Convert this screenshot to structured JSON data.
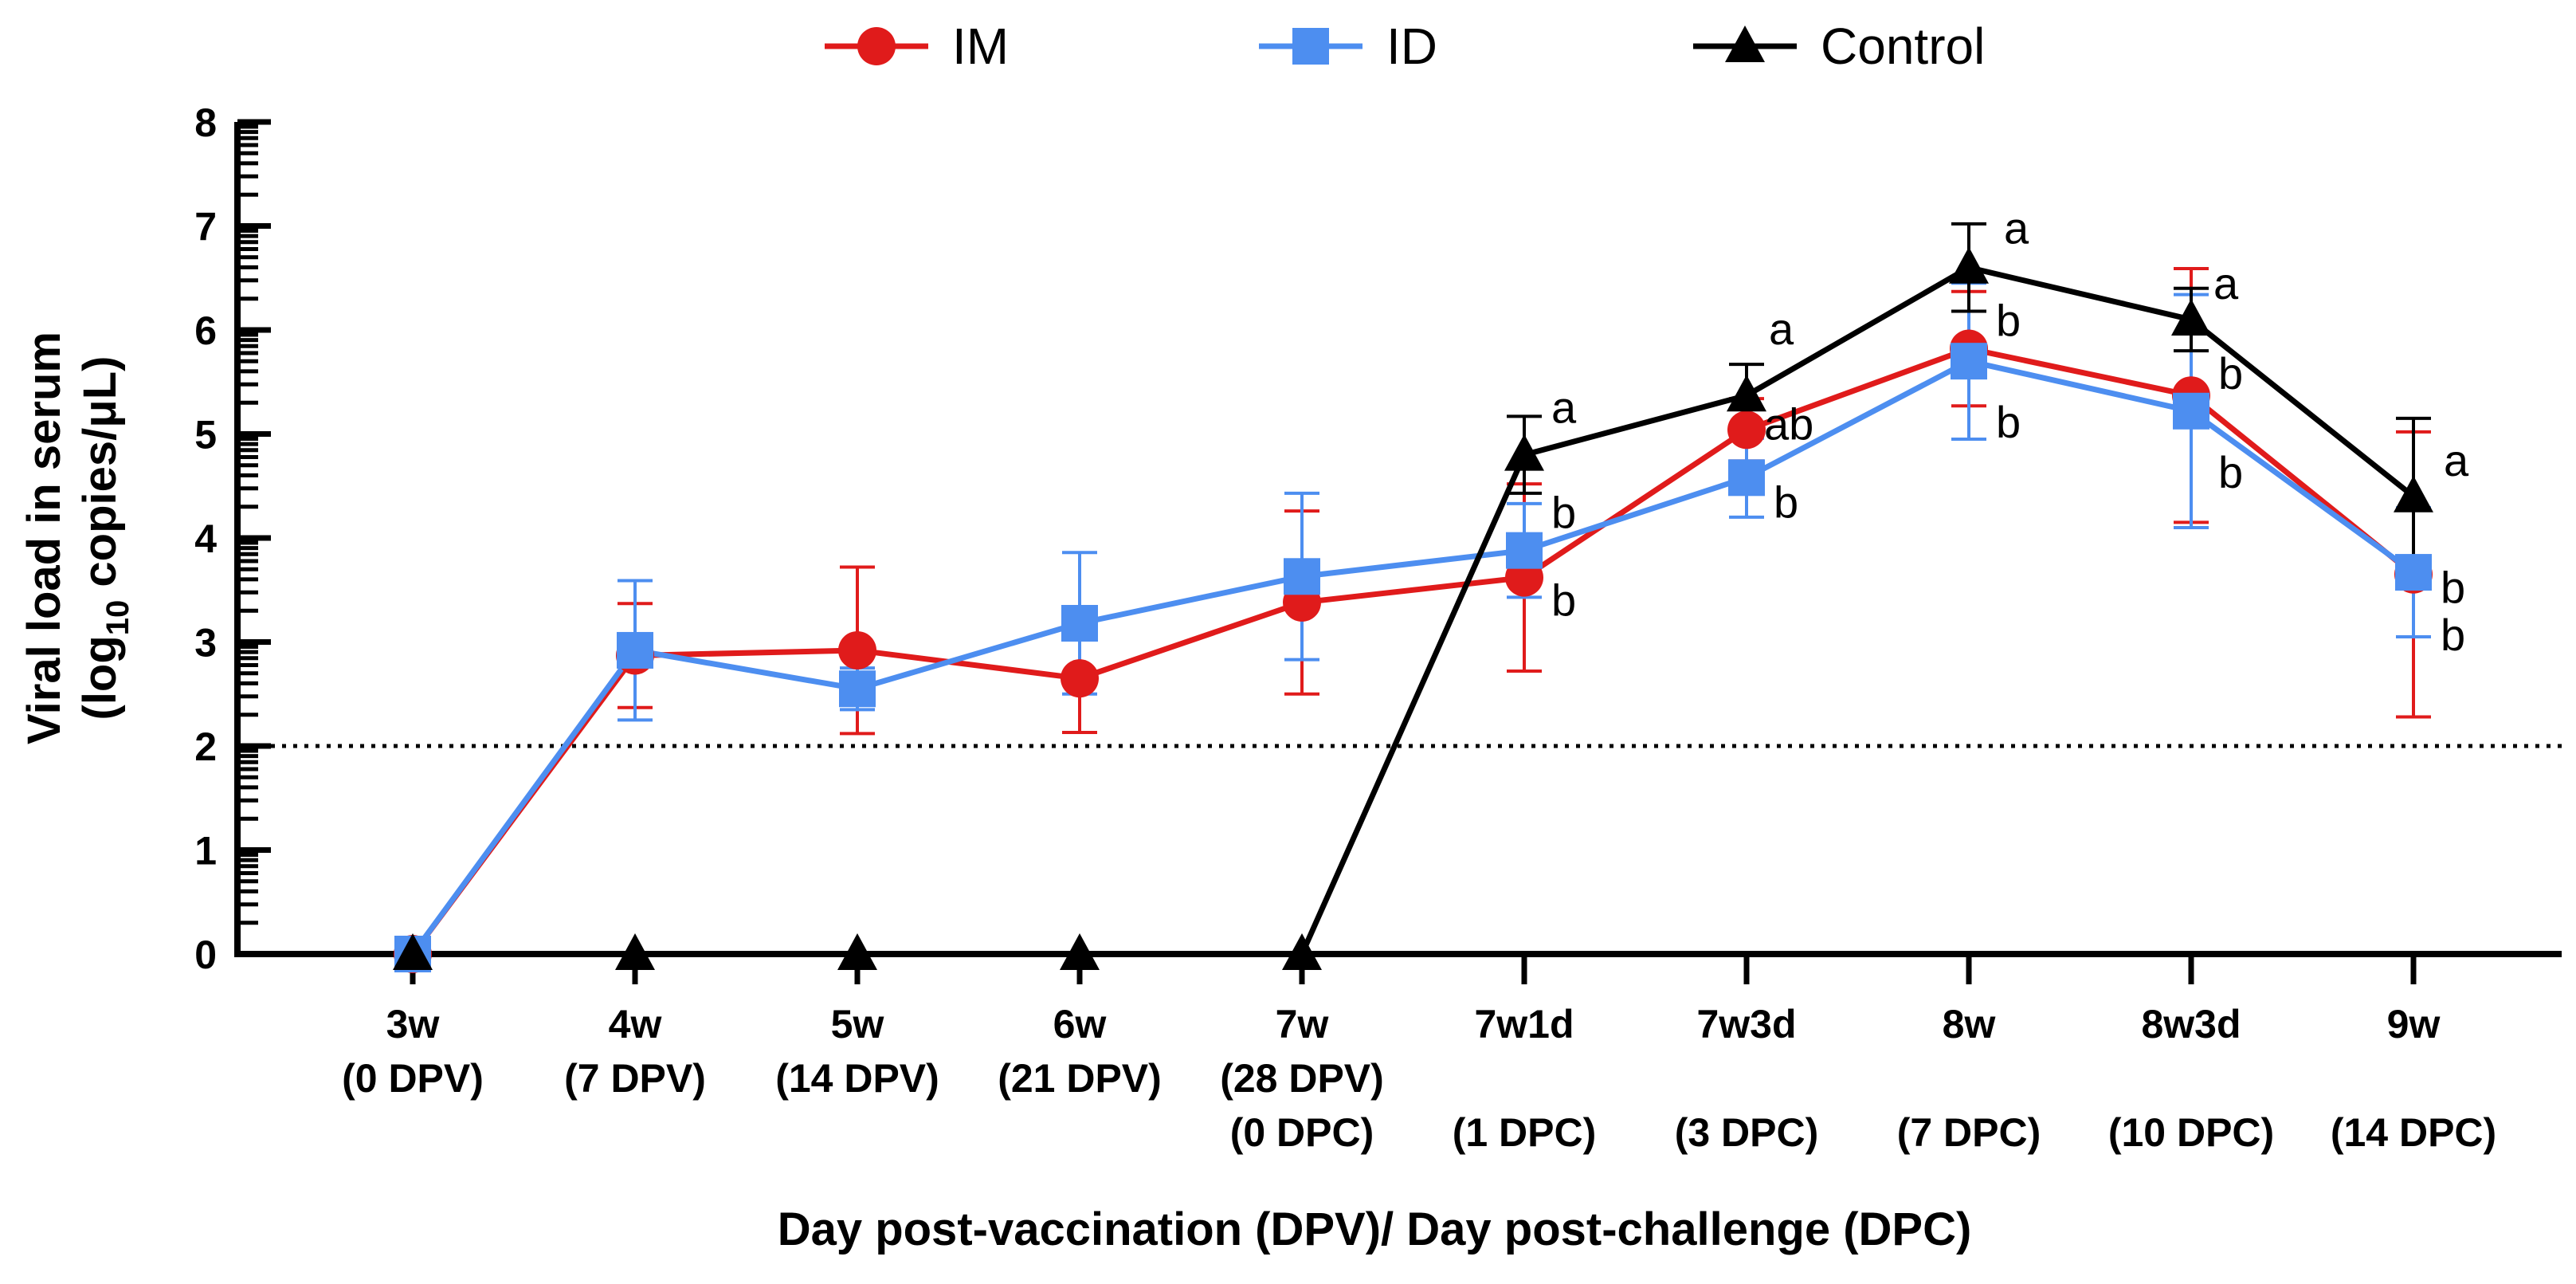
{
  "chart_data": {
    "type": "line",
    "xlabel": "Day post-vaccination (DPV)/ Day post-challenge (DPC)",
    "ylabel_line1": "Viral load in serum",
    "ylabel_line2_pre": "(log",
    "ylabel_line2_sub": "10",
    "ylabel_line2_post": " copies/μL)",
    "ylim": [
      0,
      8
    ],
    "yticks": [
      "0",
      "1",
      "2",
      "3",
      "4",
      "5",
      "6",
      "7",
      "8"
    ],
    "threshold": 2,
    "categories": [
      {
        "lines": [
          "3w",
          "(0 DPV)"
        ]
      },
      {
        "lines": [
          "4w",
          "(7 DPV)"
        ]
      },
      {
        "lines": [
          "5w",
          "(14 DPV)"
        ]
      },
      {
        "lines": [
          "6w",
          "(21 DPV)"
        ]
      },
      {
        "lines": [
          "7w",
          "(28 DPV)",
          "(0 DPC)"
        ]
      },
      {
        "lines": [
          "7w1d",
          "",
          "(1 DPC)"
        ]
      },
      {
        "lines": [
          "7w3d",
          "",
          "(3 DPC)"
        ]
      },
      {
        "lines": [
          "8w",
          "",
          "(7 DPC)"
        ]
      },
      {
        "lines": [
          "8w3d",
          "",
          "(10 DPC)"
        ]
      },
      {
        "lines": [
          "9w",
          "",
          "(14 DPC)"
        ]
      }
    ],
    "legend": {
      "position": "top-center"
    },
    "series": [
      {
        "name": "IM",
        "color": "#e01b1b",
        "marker": "circle",
        "start": 0,
        "values": [
          0,
          2.87,
          2.92,
          2.65,
          3.38,
          3.62,
          5.04,
          5.82,
          5.37,
          3.65
        ],
        "err_lo": [
          0,
          0.5,
          0.8,
          0.52,
          0.88,
          0.9,
          0.3,
          0.55,
          1.22,
          1.37
        ],
        "err_hi": [
          0,
          0.5,
          0.8,
          0.52,
          0.88,
          0.9,
          0.3,
          0.55,
          1.22,
          1.37
        ],
        "letters": [
          "",
          "",
          "",
          "",
          "",
          "b",
          "ab",
          "b",
          "b",
          "b"
        ]
      },
      {
        "name": "ID",
        "color": "#4d8ef0",
        "marker": "square",
        "start": 0,
        "values": [
          0,
          2.92,
          2.55,
          3.18,
          3.63,
          3.88,
          4.58,
          5.7,
          5.22,
          3.67
        ],
        "err_lo": [
          0,
          0.67,
          0.2,
          0.68,
          0.8,
          0.45,
          0.38,
          0.75,
          1.12,
          0.62
        ],
        "err_hi": [
          0,
          0.67,
          0.2,
          0.68,
          0.8,
          0.45,
          0.38,
          0.75,
          1.12,
          0.62
        ],
        "letters": [
          "",
          "",
          "",
          "",
          "",
          "b",
          "b",
          "b",
          "b",
          "b"
        ]
      },
      {
        "name": "Control",
        "color": "#000000",
        "marker": "triangle",
        "start": 4,
        "values": [
          0,
          0,
          0,
          0,
          0,
          4.8,
          5.37,
          6.6,
          6.1,
          4.4
        ],
        "err_lo": [
          0,
          0,
          0,
          0,
          0,
          0.37,
          0.3,
          0.42,
          0.3,
          0.75
        ],
        "err_hi": [
          0,
          0,
          0,
          0,
          0,
          0.37,
          0.3,
          0.42,
          0.3,
          0.75
        ],
        "letters": [
          "",
          "",
          "",
          "",
          "",
          "a",
          "a",
          "a",
          "a",
          "a"
        ]
      }
    ]
  }
}
